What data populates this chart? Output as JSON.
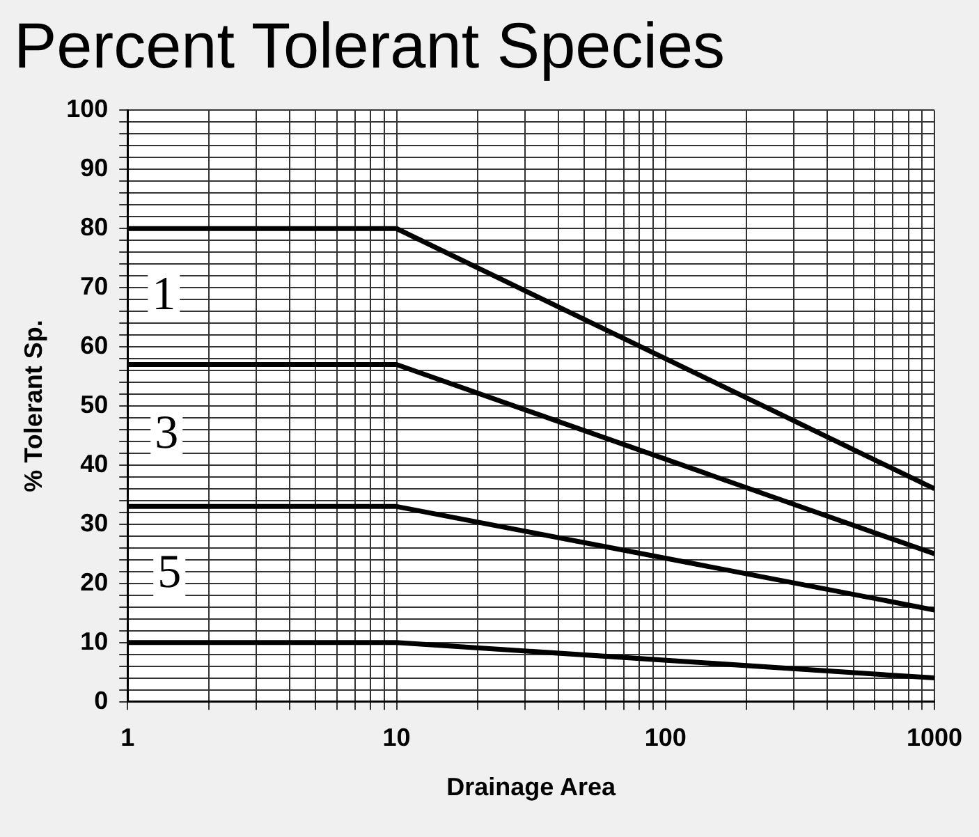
{
  "chart_data": {
    "type": "line",
    "title": "Percent Tolerant Species",
    "xlabel": "Drainage Area",
    "ylabel": "% Tolerant Sp.",
    "log": "x",
    "xlim": [
      1,
      1000
    ],
    "ylim": [
      0,
      100
    ],
    "xticks": [
      1,
      {
        "value": 2,
        "label": null
      },
      {
        "value": 3,
        "label": null
      },
      {
        "value": 4,
        "label": null
      },
      {
        "value": 5,
        "label": null
      },
      {
        "value": 6,
        "label": null
      },
      {
        "value": 7,
        "label": null
      },
      {
        "value": 8,
        "label": null
      },
      {
        "value": 9,
        "label": null
      },
      10,
      {
        "value": 20,
        "label": null
      },
      {
        "value": 30,
        "label": null
      },
      {
        "value": 40,
        "label": null
      },
      {
        "value": 50,
        "label": null
      },
      {
        "value": 60,
        "label": null
      },
      {
        "value": 70,
        "label": null
      },
      {
        "value": 80,
        "label": null
      },
      {
        "value": 90,
        "label": null
      },
      100,
      {
        "value": 200,
        "label": null
      },
      {
        "value": 300,
        "label": null
      },
      {
        "value": 400,
        "label": null
      },
      {
        "value": 500,
        "label": null
      },
      {
        "value": 600,
        "label": null
      },
      {
        "value": 700,
        "label": null
      },
      {
        "value": 800,
        "label": null
      },
      {
        "value": 900,
        "label": null
      },
      1000
    ],
    "yticks": [
      0,
      {
        "value": 2,
        "label": null
      },
      {
        "value": 4,
        "label": null
      },
      {
        "value": 6,
        "label": null
      },
      {
        "value": 8,
        "label": null
      },
      10,
      {
        "value": 12,
        "label": null
      },
      {
        "value": 14,
        "label": null
      },
      {
        "value": 16,
        "label": null
      },
      {
        "value": 18,
        "label": null
      },
      20,
      {
        "value": 22,
        "label": null
      },
      {
        "value": 24,
        "label": null
      },
      {
        "value": 26,
        "label": null
      },
      {
        "value": 28,
        "label": null
      },
      30,
      {
        "value": 32,
        "label": null
      },
      {
        "value": 34,
        "label": null
      },
      {
        "value": 36,
        "label": null
      },
      {
        "value": 38,
        "label": null
      },
      40,
      {
        "value": 42,
        "label": null
      },
      {
        "value": 44,
        "label": null
      },
      {
        "value": 46,
        "label": null
      },
      {
        "value": 48,
        "label": null
      },
      50,
      {
        "value": 52,
        "label": null
      },
      {
        "value": 54,
        "label": null
      },
      {
        "value": 56,
        "label": null
      },
      {
        "value": 58,
        "label": null
      },
      60,
      {
        "value": 62,
        "label": null
      },
      {
        "value": 64,
        "label": null
      },
      {
        "value": 66,
        "label": null
      },
      {
        "value": 68,
        "label": null
      },
      70,
      {
        "value": 72,
        "label": null
      },
      {
        "value": 74,
        "label": null
      },
      {
        "value": 76,
        "label": null
      },
      {
        "value": 78,
        "label": null
      },
      80,
      {
        "value": 82,
        "label": null
      },
      {
        "value": 84,
        "label": null
      },
      {
        "value": 86,
        "label": null
      },
      {
        "value": 88,
        "label": null
      },
      90,
      {
        "value": 92,
        "label": null
      },
      {
        "value": 94,
        "label": null
      },
      {
        "value": 96,
        "label": null
      },
      {
        "value": 98,
        "label": null
      },
      100
    ],
    "grid": true,
    "legend": false,
    "marker": "none",
    "line_style": "solid",
    "series": [
      {
        "color": "#000000",
        "x": [
          1,
          10,
          1000
        ],
        "values": [
          80,
          80,
          36
        ]
      },
      {
        "color": "#000000",
        "x": [
          1,
          10,
          1000
        ],
        "values": [
          57,
          57,
          25
        ]
      },
      {
        "color": "#000000",
        "x": [
          1,
          10,
          1000
        ],
        "values": [
          33,
          33,
          15.5
        ]
      },
      {
        "color": "#000000",
        "x": [
          1,
          10,
          1000
        ],
        "values": [
          10,
          10,
          4
        ]
      }
    ],
    "annotations": [
      "1",
      "3",
      "5"
    ]
  }
}
